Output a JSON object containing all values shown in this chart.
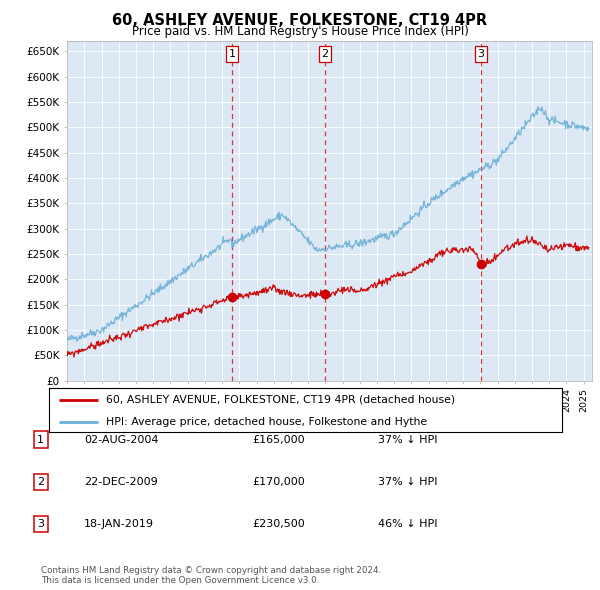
{
  "title": "60, ASHLEY AVENUE, FOLKESTONE, CT19 4PR",
  "subtitle": "Price paid vs. HM Land Registry's House Price Index (HPI)",
  "plot_background": "#dce9f5",
  "ylabel_vals": [
    0,
    50000,
    100000,
    150000,
    200000,
    250000,
    300000,
    350000,
    400000,
    450000,
    500000,
    550000,
    600000,
    650000
  ],
  "ylim": [
    0,
    670000
  ],
  "sale_dates": [
    2004.58,
    2009.97,
    2019.05
  ],
  "sale_prices": [
    165000,
    170000,
    230500
  ],
  "sale_labels": [
    "1",
    "2",
    "3"
  ],
  "legend_red": "60, ASHLEY AVENUE, FOLKESTONE, CT19 4PR (detached house)",
  "legend_blue": "HPI: Average price, detached house, Folkestone and Hythe",
  "table_rows": [
    [
      "1",
      "02-AUG-2004",
      "£165,000",
      "37% ↓ HPI"
    ],
    [
      "2",
      "22-DEC-2009",
      "£170,000",
      "37% ↓ HPI"
    ],
    [
      "3",
      "18-JAN-2019",
      "£230,500",
      "46% ↓ HPI"
    ]
  ],
  "footer": "Contains HM Land Registry data © Crown copyright and database right 2024.\nThis data is licensed under the Open Government Licence v3.0.",
  "red_color": "#cc0000",
  "blue_color": "#6baed6",
  "dashed_color": "#cc0000",
  "xlim_start": 1995.0,
  "xlim_end": 2025.5
}
